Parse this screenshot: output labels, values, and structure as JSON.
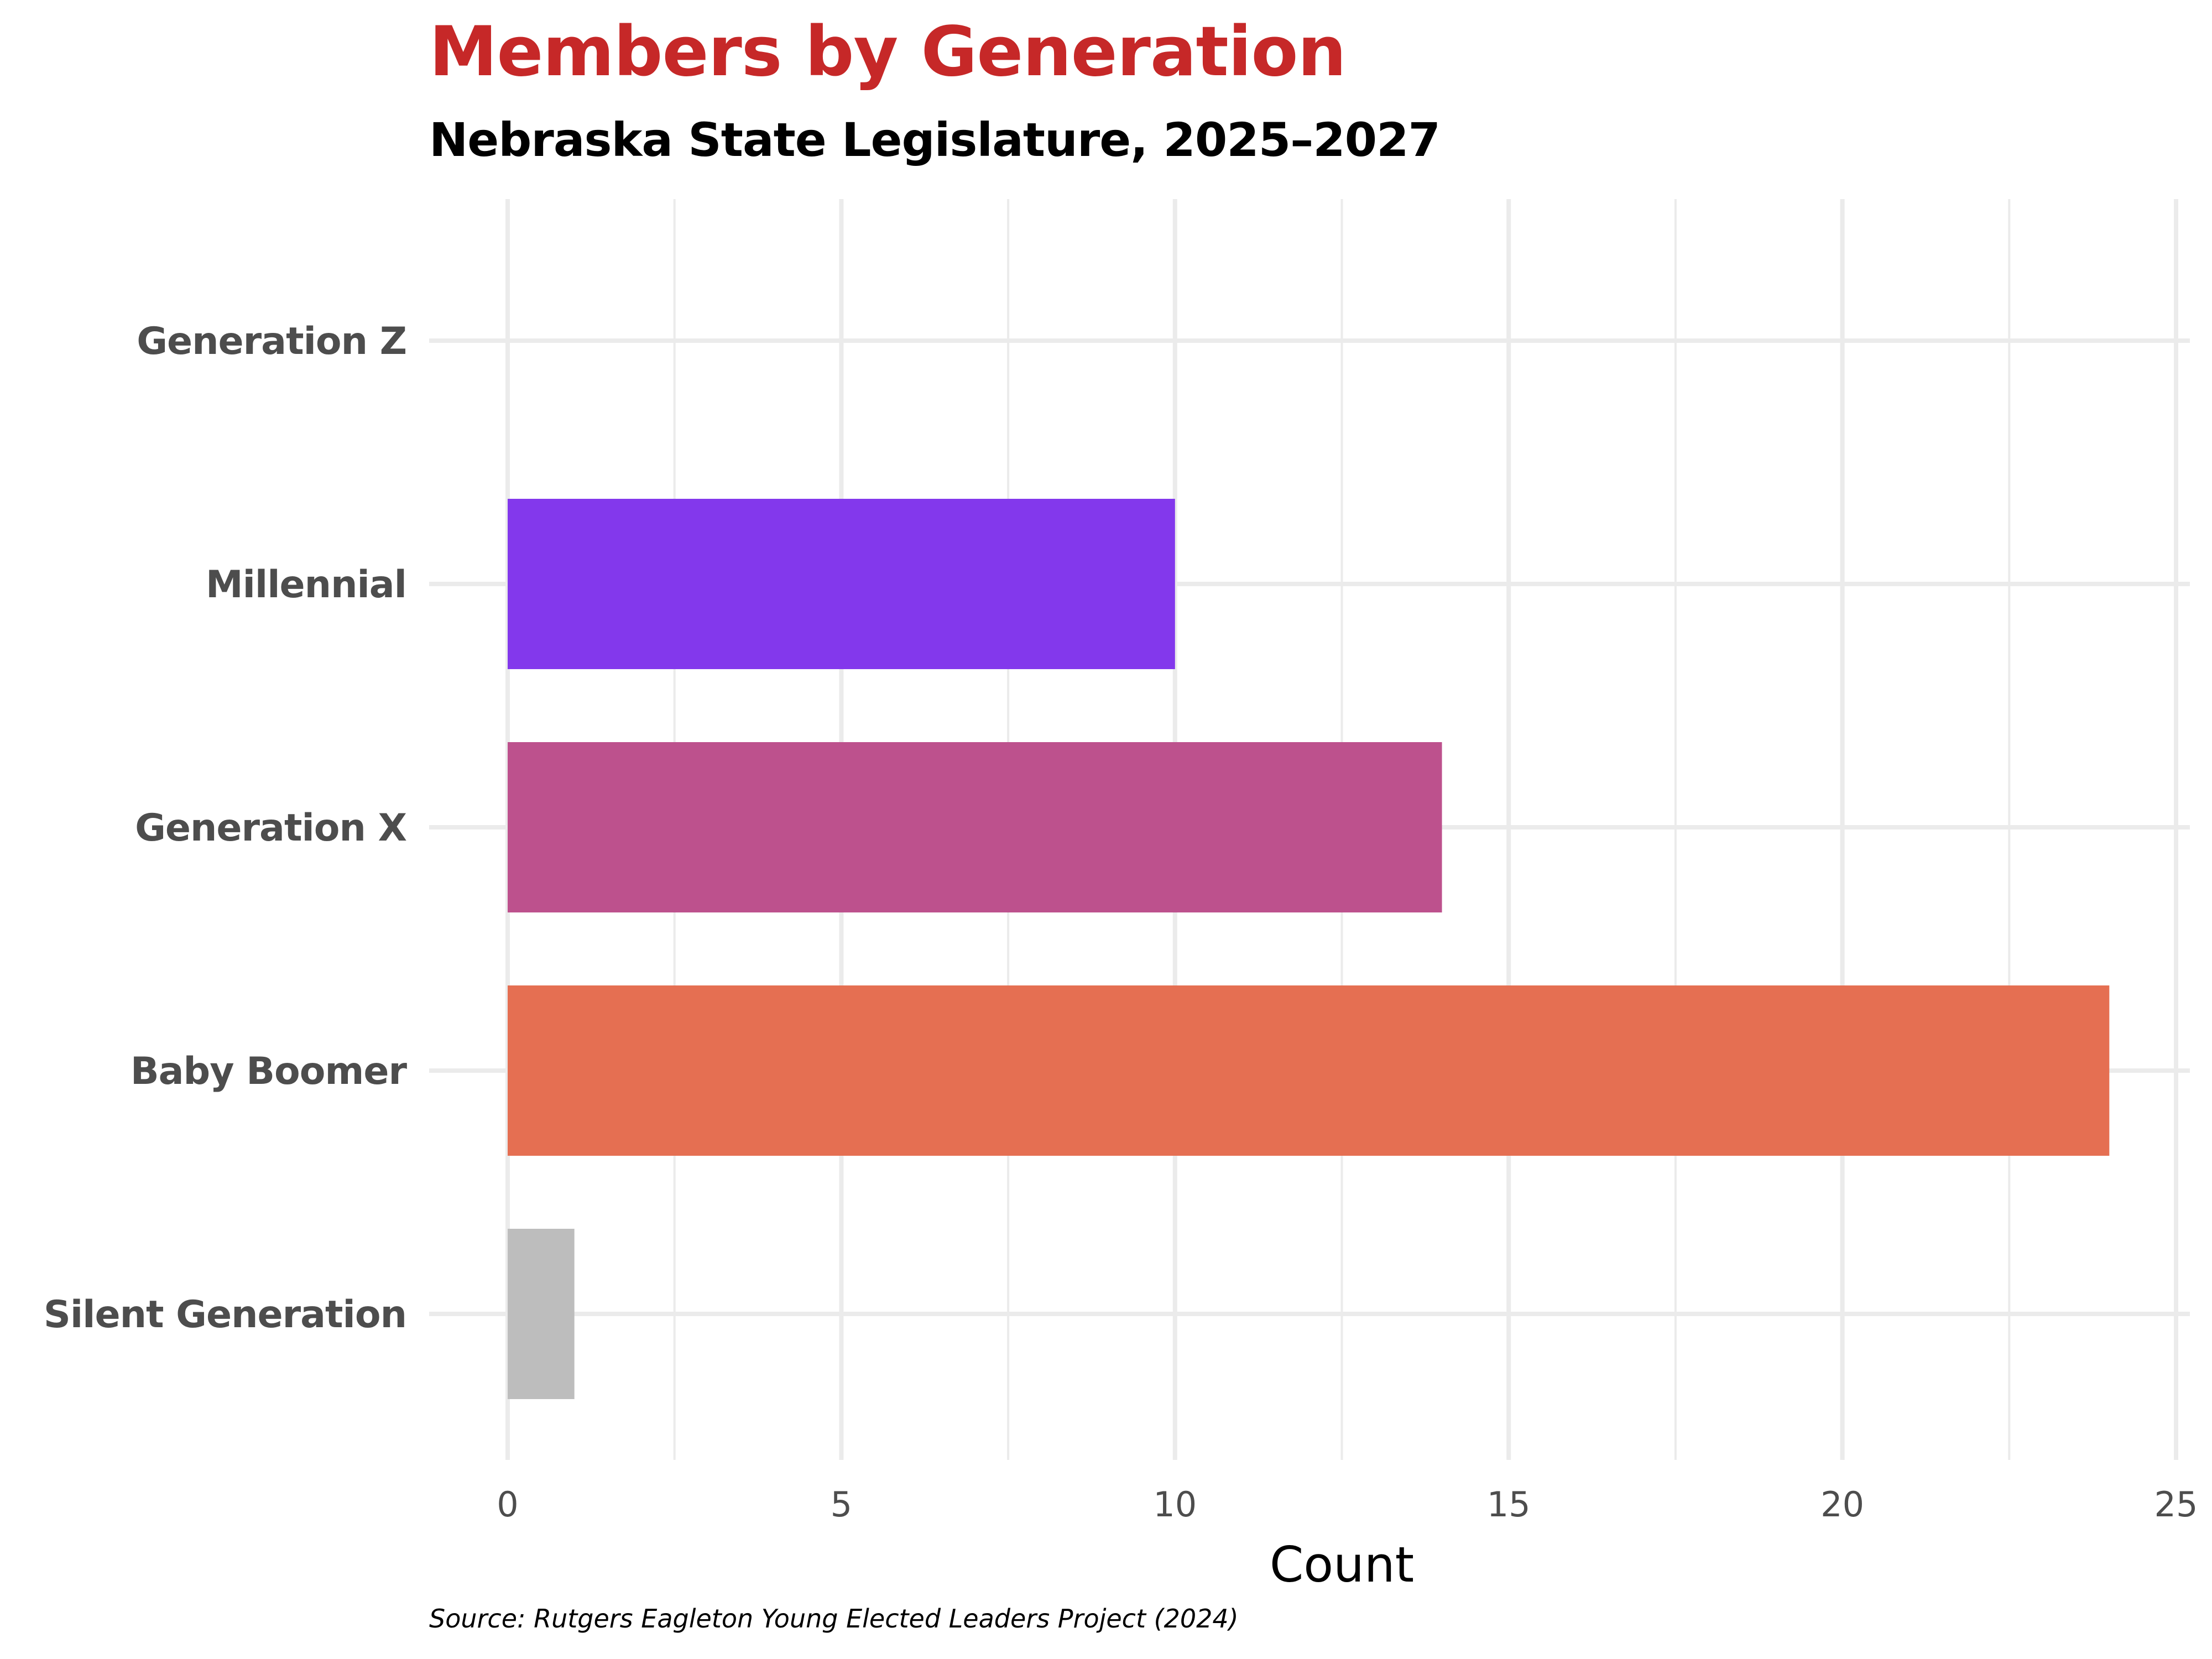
{
  "chart_data": {
    "type": "bar",
    "orientation": "horizontal",
    "title": "Members by Generation",
    "subtitle": "Nebraska State Legislature, 2025–2027",
    "xlabel": "Count",
    "ylabel": "",
    "caption": "Source: Rutgers Eagleton Young Elected Leaders Project (2024)",
    "categories": [
      "Generation Z",
      "Millennial",
      "Generation X",
      "Baby Boomer",
      "Silent Generation"
    ],
    "values": [
      0,
      10,
      14,
      24,
      1
    ],
    "colors": [
      "#cccccc",
      "#8338ec",
      "#bd518d",
      "#e56f52",
      "#bdbdbd"
    ],
    "xlim": [
      0,
      25
    ],
    "xticks": [
      0,
      5,
      10,
      15,
      20,
      25
    ],
    "xtick_labels": [
      "0",
      "5",
      "10",
      "15",
      "20",
      "25"
    ],
    "grid": true,
    "legend": "none"
  }
}
